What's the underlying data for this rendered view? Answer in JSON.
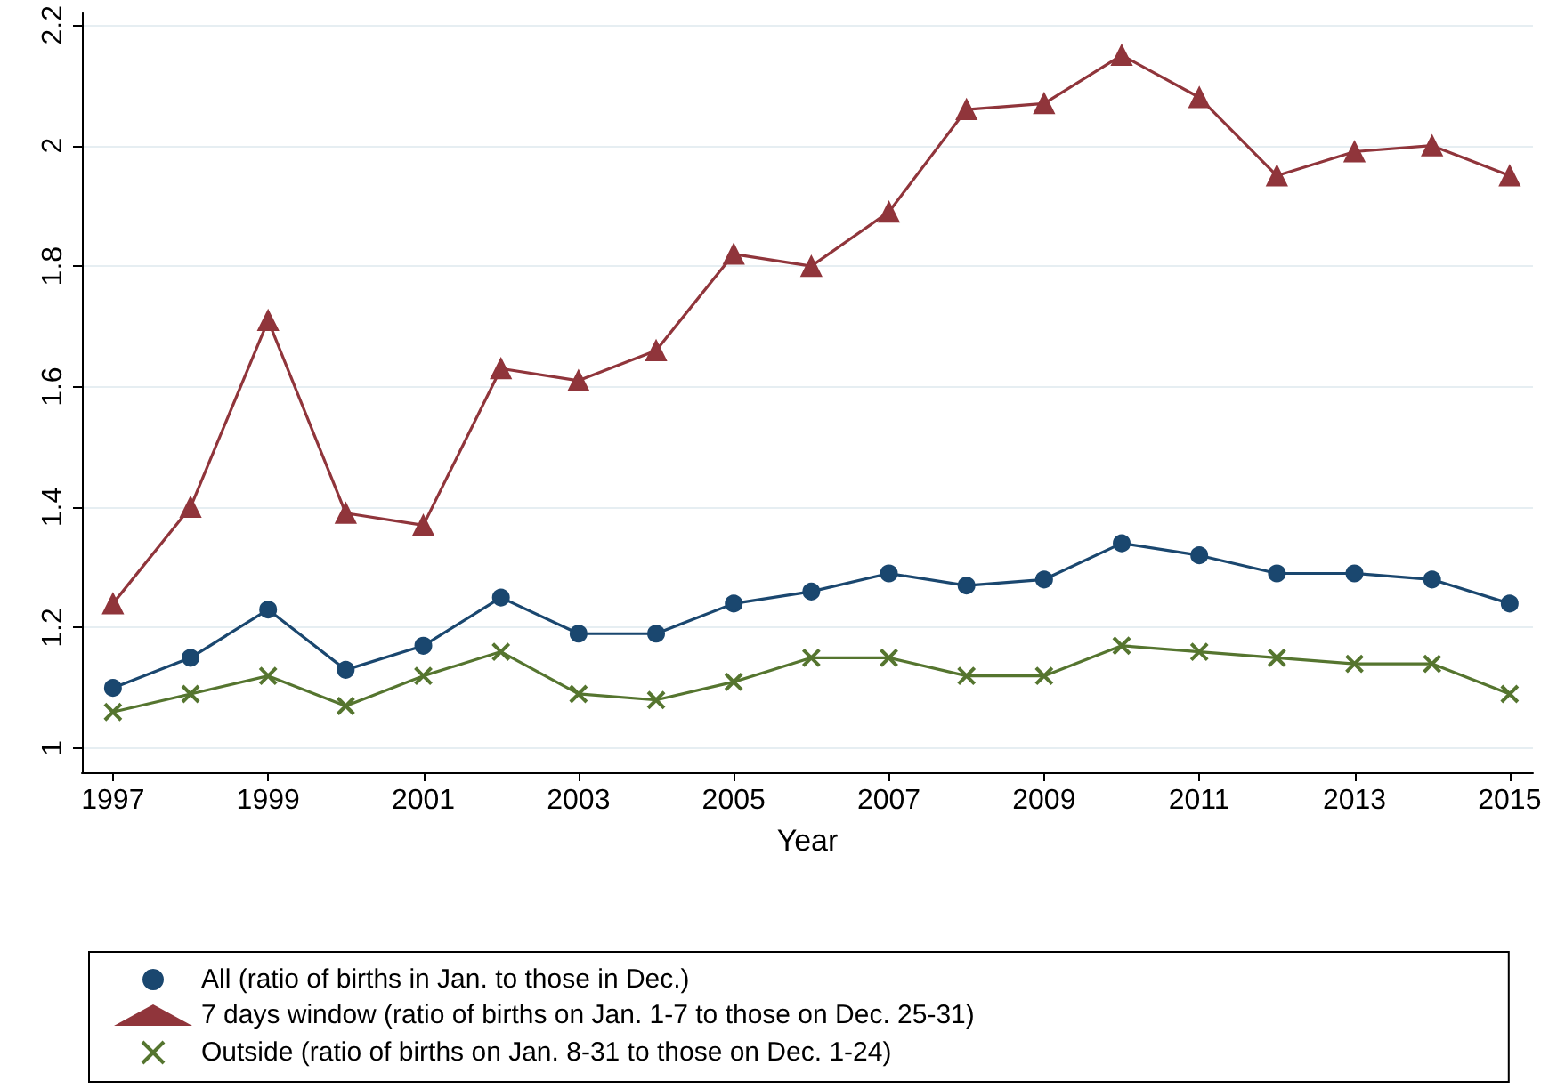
{
  "chart_data": {
    "type": "line",
    "xlabel": "Year",
    "x": [
      1997,
      1998,
      1999,
      2000,
      2001,
      2002,
      2003,
      2004,
      2005,
      2006,
      2007,
      2008,
      2009,
      2010,
      2011,
      2012,
      2013,
      2014,
      2015
    ],
    "series": [
      {
        "name": "All (ratio of births in Jan. to those in Dec.)",
        "color": "#1a476f",
        "marker": "circle",
        "values": [
          1.1,
          1.15,
          1.23,
          1.13,
          1.17,
          1.25,
          1.19,
          1.19,
          1.24,
          1.26,
          1.29,
          1.27,
          1.28,
          1.34,
          1.32,
          1.29,
          1.29,
          1.28,
          1.24
        ]
      },
      {
        "name": "7 days window (ratio of births on Jan. 1-7 to those on Dec. 25-31)",
        "color": "#90353b",
        "marker": "triangle",
        "values": [
          1.24,
          1.4,
          1.71,
          1.39,
          1.37,
          1.63,
          1.61,
          1.66,
          1.82,
          1.8,
          1.89,
          2.06,
          2.07,
          2.15,
          2.08,
          1.95,
          1.99,
          2.0,
          1.95
        ]
      },
      {
        "name": "Outside (ratio of births on Jan. 8-31 to those on Dec. 1-24)",
        "color": "#55752f",
        "marker": "cross",
        "values": [
          1.06,
          1.09,
          1.12,
          1.07,
          1.12,
          1.16,
          1.09,
          1.08,
          1.11,
          1.15,
          1.15,
          1.12,
          1.12,
          1.17,
          1.16,
          1.15,
          1.14,
          1.14,
          1.09
        ]
      }
    ],
    "xlim": [
      1996.6,
      2015.3
    ],
    "xticks": [
      1997,
      1999,
      2001,
      2003,
      2005,
      2007,
      2009,
      2011,
      2013,
      2015
    ],
    "ylim": [
      0.96,
      2.22
    ],
    "yticks": [
      1,
      1.2,
      1.4,
      1.6,
      1.8,
      2,
      2.2
    ],
    "grid": "y",
    "legend": "bottom",
    "line_style": "solid"
  }
}
